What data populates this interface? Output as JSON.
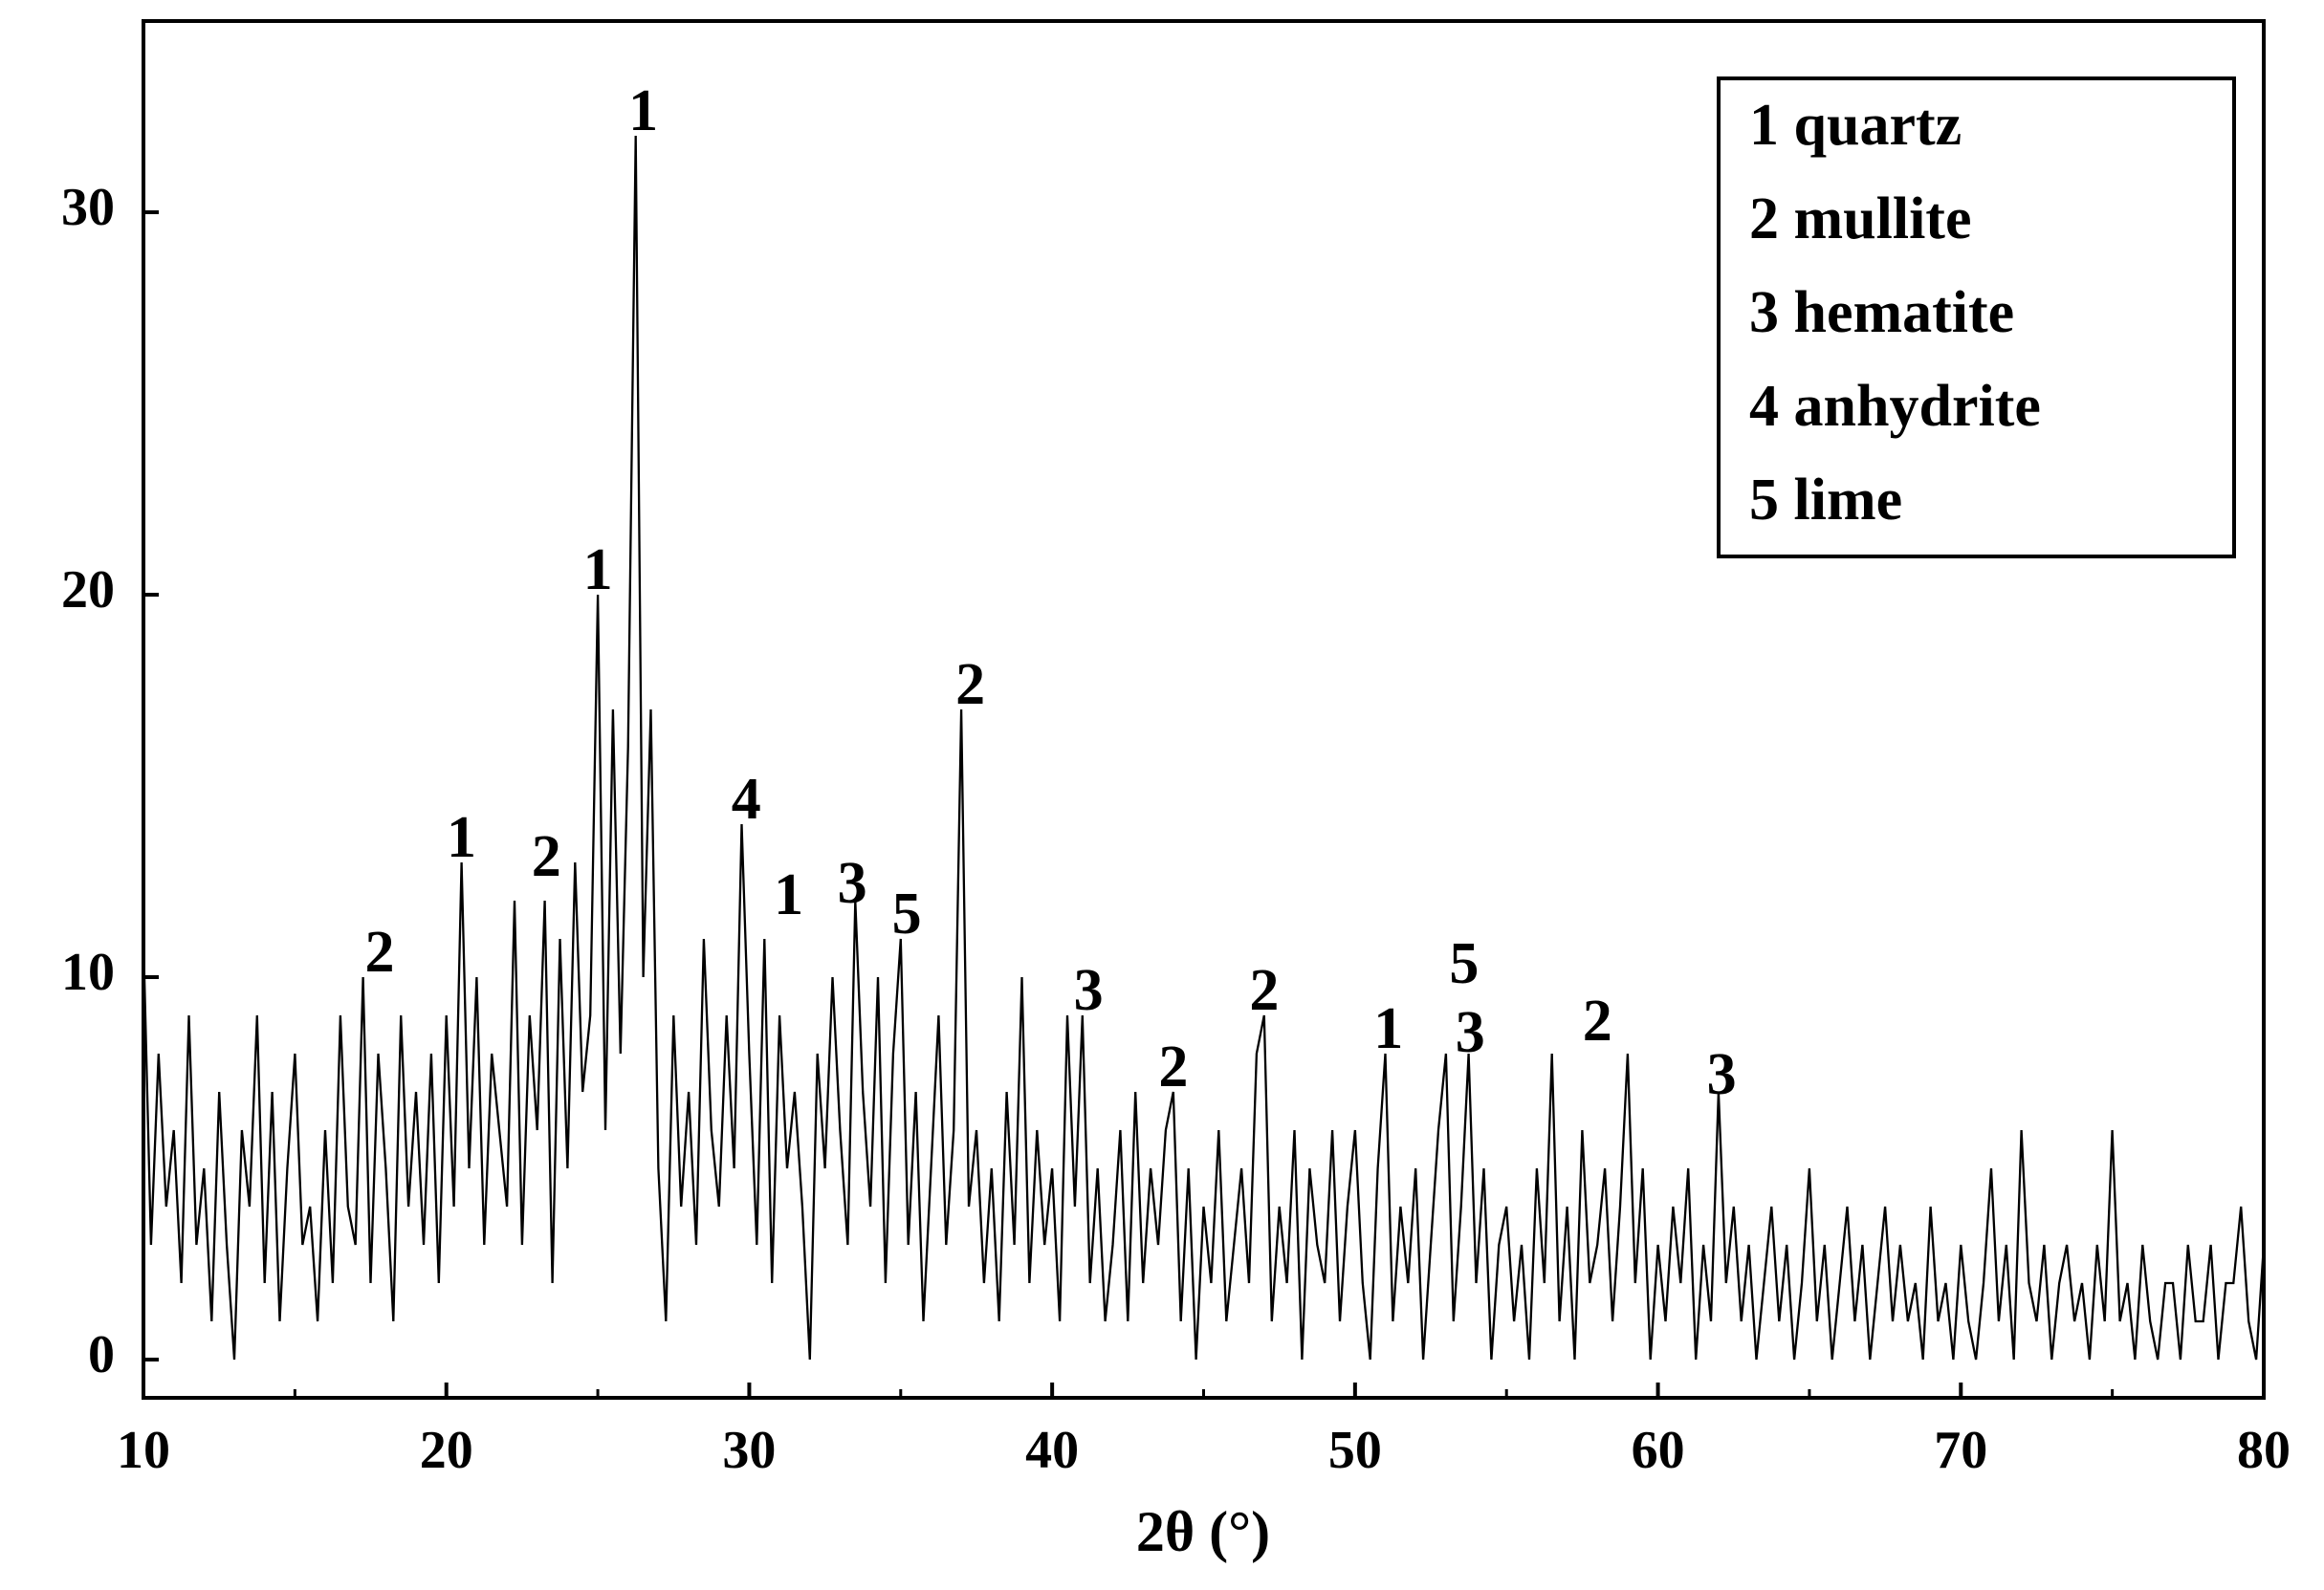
{
  "chart_data": {
    "type": "line",
    "xlabel": "2θ (°)",
    "color": "#000000",
    "xlim": [
      10,
      80
    ],
    "ylim": [
      -1,
      35
    ],
    "xticks": [
      10,
      20,
      30,
      40,
      50,
      60,
      70,
      80
    ],
    "xminorticks": [
      15,
      25,
      35,
      45,
      55,
      65,
      75
    ],
    "yticks": [
      0,
      10,
      20,
      30
    ],
    "x": [
      10,
      10.25,
      10.5,
      10.75,
      11,
      11.25,
      11.5,
      11.75,
      12,
      12.25,
      12.5,
      12.75,
      13,
      13.25,
      13.5,
      13.75,
      14,
      14.25,
      14.5,
      14.75,
      15,
      15.25,
      15.5,
      15.75,
      16,
      16.25,
      16.5,
      16.75,
      17,
      17.25,
      17.5,
      17.75,
      18,
      18.25,
      18.5,
      18.75,
      19,
      19.25,
      19.5,
      19.75,
      20,
      20.25,
      20.5,
      20.75,
      21,
      21.25,
      21.5,
      21.75,
      22,
      22.25,
      22.5,
      22.75,
      23,
      23.25,
      23.5,
      23.75,
      24,
      24.25,
      24.5,
      24.75,
      25,
      25.25,
      25.5,
      25.75,
      26,
      26.25,
      26.5,
      26.75,
      27,
      27.25,
      27.5,
      27.75,
      28,
      28.25,
      28.5,
      28.75,
      29,
      29.25,
      29.5,
      29.75,
      30,
      30.25,
      30.5,
      30.75,
      31,
      31.25,
      31.5,
      31.75,
      32,
      32.25,
      32.5,
      32.75,
      33,
      33.25,
      33.5,
      33.75,
      34,
      34.25,
      34.5,
      34.75,
      35,
      35.25,
      35.5,
      35.75,
      36,
      36.25,
      36.5,
      36.75,
      37,
      37.25,
      37.5,
      37.75,
      38,
      38.25,
      38.5,
      38.75,
      39,
      39.25,
      39.5,
      39.75,
      40,
      40.25,
      40.5,
      40.75,
      41,
      41.25,
      41.5,
      41.75,
      42,
      42.25,
      42.5,
      42.75,
      43,
      43.25,
      43.5,
      43.75,
      44,
      44.25,
      44.5,
      44.75,
      45,
      45.25,
      45.5,
      45.75,
      46,
      46.25,
      46.5,
      46.75,
      47,
      47.25,
      47.5,
      47.75,
      48,
      48.25,
      48.5,
      48.75,
      49,
      49.25,
      49.5,
      49.75,
      50,
      50.25,
      50.5,
      50.75,
      51,
      51.25,
      51.5,
      51.75,
      52,
      52.25,
      52.5,
      52.75,
      53,
      53.25,
      53.5,
      53.75,
      54,
      54.25,
      54.5,
      54.75,
      55,
      55.25,
      55.5,
      55.75,
      56,
      56.25,
      56.5,
      56.75,
      57,
      57.25,
      57.5,
      57.75,
      58,
      58.25,
      58.5,
      58.75,
      59,
      59.25,
      59.5,
      59.75,
      60,
      60.25,
      60.5,
      60.75,
      61,
      61.25,
      61.5,
      61.75,
      62,
      62.25,
      62.5,
      62.75,
      63,
      63.25,
      63.5,
      63.75,
      64,
      64.25,
      64.5,
      64.75,
      65,
      65.25,
      65.5,
      65.75,
      66,
      66.25,
      66.5,
      66.75,
      67,
      67.25,
      67.5,
      67.75,
      68,
      68.25,
      68.5,
      68.75,
      69,
      69.25,
      69.5,
      69.75,
      70,
      70.25,
      70.5,
      70.75,
      71,
      71.25,
      71.5,
      71.75,
      72,
      72.25,
      72.5,
      72.75,
      73,
      73.25,
      73.5,
      73.75,
      74,
      74.25,
      74.5,
      74.75,
      75,
      75.25,
      75.5,
      75.75,
      76,
      76.25,
      76.5,
      76.75,
      77,
      77.25,
      77.5,
      77.75,
      78,
      78.25,
      78.5,
      78.75,
      79,
      79.25,
      79.5,
      79.75,
      80
    ],
    "values": [
      11,
      3,
      8,
      4,
      6,
      2,
      9,
      3,
      5,
      1,
      7,
      3,
      0,
      6,
      4,
      9,
      2,
      7,
      1,
      5,
      8,
      3,
      4,
      1,
      6,
      2,
      9,
      4,
      3,
      10,
      2,
      8,
      5,
      1,
      9,
      4,
      7,
      3,
      8,
      2,
      9,
      4,
      13,
      5,
      10,
      3,
      8,
      6,
      4,
      12,
      3,
      9,
      6,
      12,
      2,
      11,
      5,
      13,
      7,
      9,
      20,
      6,
      17,
      8,
      16,
      32,
      10,
      17,
      5,
      1,
      9,
      4,
      7,
      3,
      11,
      6,
      4,
      9,
      5,
      14,
      8,
      3,
      11,
      2,
      9,
      5,
      7,
      4,
      0,
      8,
      5,
      10,
      6,
      3,
      12,
      7,
      4,
      10,
      2,
      8,
      11,
      3,
      7,
      1,
      5,
      9,
      3,
      6,
      17,
      4,
      6,
      2,
      5,
      1,
      7,
      3,
      10,
      2,
      6,
      3,
      5,
      1,
      9,
      4,
      9,
      2,
      5,
      1,
      3,
      6,
      1,
      7,
      2,
      5,
      3,
      6,
      7,
      1,
      5,
      0,
      4,
      2,
      6,
      1,
      3,
      5,
      2,
      8,
      9,
      1,
      4,
      2,
      6,
      0,
      5,
      3,
      2,
      6,
      1,
      4,
      6,
      2,
      0,
      5,
      8,
      1,
      4,
      2,
      5,
      0,
      3,
      6,
      8,
      1,
      4,
      8,
      2,
      5,
      0,
      3,
      4,
      1,
      3,
      0,
      5,
      2,
      8,
      1,
      4,
      0,
      6,
      2,
      3,
      5,
      1,
      4,
      8,
      2,
      5,
      0,
      3,
      1,
      4,
      2,
      5,
      0,
      3,
      1,
      7,
      2,
      4,
      1,
      3,
      0,
      2,
      4,
      1,
      3,
      0,
      2,
      5,
      1,
      3,
      0,
      2,
      4,
      1,
      3,
      0,
      2,
      4,
      1,
      3,
      1,
      2,
      0,
      4,
      1,
      2,
      0,
      3,
      1,
      0,
      2,
      5,
      1,
      3,
      0,
      6,
      2,
      1,
      3,
      0,
      2,
      3,
      1,
      2,
      0,
      3,
      1,
      6,
      1,
      2,
      0,
      3,
      1,
      0,
      2,
      2,
      0,
      3,
      1,
      1,
      3,
      0,
      2,
      2,
      4,
      1,
      0,
      3
    ],
    "annotations": [
      {
        "text": "2",
        "x": 17.8,
        "y": 10.5
      },
      {
        "text": "1",
        "x": 20.5,
        "y": 13.5
      },
      {
        "text": "2",
        "x": 23.3,
        "y": 13
      },
      {
        "text": "1",
        "x": 25,
        "y": 20.5
      },
      {
        "text": "1",
        "x": 26.5,
        "y": 32.5
      },
      {
        "text": "4",
        "x": 29.9,
        "y": 14.5
      },
      {
        "text": "1",
        "x": 31.3,
        "y": 12
      },
      {
        "text": "3",
        "x": 33.4,
        "y": 12.3
      },
      {
        "text": "5",
        "x": 35.2,
        "y": 11.5
      },
      {
        "text": "2",
        "x": 37.3,
        "y": 17.5
      },
      {
        "text": "3",
        "x": 41.2,
        "y": 9.5
      },
      {
        "text": "2",
        "x": 44,
        "y": 7.5
      },
      {
        "text": "2",
        "x": 47,
        "y": 9.5
      },
      {
        "text": "1",
        "x": 51.1,
        "y": 8.5
      },
      {
        "text": "5",
        "x": 53.6,
        "y": 10.2
      },
      {
        "text": "3",
        "x": 53.8,
        "y": 8.4
      },
      {
        "text": "2",
        "x": 58,
        "y": 8.7
      },
      {
        "text": "3",
        "x": 62.1,
        "y": 7.3
      }
    ],
    "legend_items": [
      "1 quartz",
      "2 mullite",
      "3 hematite",
      "4 anhydrite",
      "5 lime"
    ]
  }
}
